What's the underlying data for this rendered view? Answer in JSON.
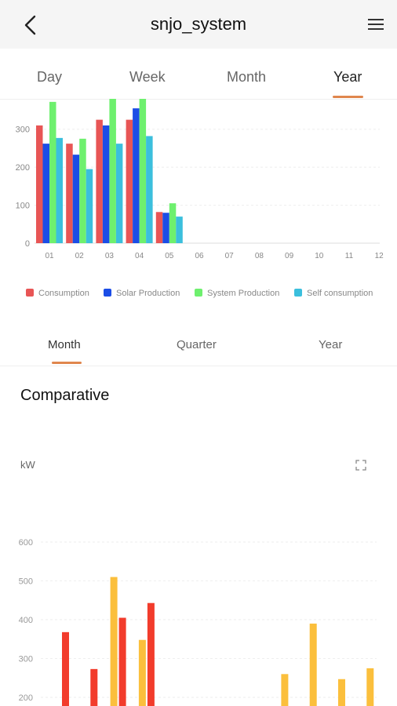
{
  "header": {
    "title": "snjo_system"
  },
  "period_tabs": [
    {
      "label": "Day",
      "active": false
    },
    {
      "label": "Week",
      "active": false
    },
    {
      "label": "Month",
      "active": false
    },
    {
      "label": "Year",
      "active": true
    }
  ],
  "chart_data": [
    {
      "type": "bar",
      "categories": [
        "01",
        "02",
        "03",
        "04",
        "05",
        "06",
        "07",
        "08",
        "09",
        "10",
        "11",
        "12"
      ],
      "ylim": [
        0,
        380
      ],
      "y_ticks": [
        0,
        100,
        200,
        300
      ],
      "grid": true,
      "legend_position": "bottom",
      "series": [
        {
          "name": "Consumption",
          "color": "#e85555",
          "values": [
            310,
            262,
            325,
            325,
            82,
            null,
            null,
            null,
            null,
            null,
            null,
            null
          ]
        },
        {
          "name": "Solar Production",
          "color": "#1b4de6",
          "values": [
            262,
            233,
            310,
            355,
            80,
            null,
            null,
            null,
            null,
            null,
            null,
            null
          ]
        },
        {
          "name": "System Production",
          "color": "#6ef06e",
          "values": [
            372,
            275,
            380,
            380,
            105,
            null,
            null,
            null,
            null,
            null,
            null,
            null
          ]
        },
        {
          "name": "Self consumption",
          "color": "#3bbfdd",
          "values": [
            277,
            195,
            262,
            282,
            70,
            null,
            null,
            null,
            null,
            null,
            null,
            null
          ]
        }
      ]
    },
    {
      "type": "bar",
      "ylim": [
        150,
        620
      ],
      "y_ticks": [
        200,
        300,
        400,
        500,
        600
      ],
      "grid": true,
      "series": [
        {
          "color": "#fbbf3c",
          "values": [
            null,
            null,
            510,
            348,
            null,
            null,
            null,
            null,
            260,
            390,
            247,
            275
          ]
        },
        {
          "color": "#f23c2c",
          "values": [
            368,
            273,
            405,
            443,
            null,
            null,
            null,
            null,
            null,
            null,
            null,
            null
          ]
        }
      ]
    }
  ],
  "range_tabs": [
    {
      "label": "Month",
      "active": true
    },
    {
      "label": "Quarter",
      "active": false
    },
    {
      "label": "Year",
      "active": false
    }
  ],
  "comparative": {
    "title": "Comparative",
    "unit": "kW"
  },
  "icons": {
    "back": "chevron-left-icon",
    "menu": "hamburger-menu-icon",
    "expand": "fullscreen-icon"
  }
}
